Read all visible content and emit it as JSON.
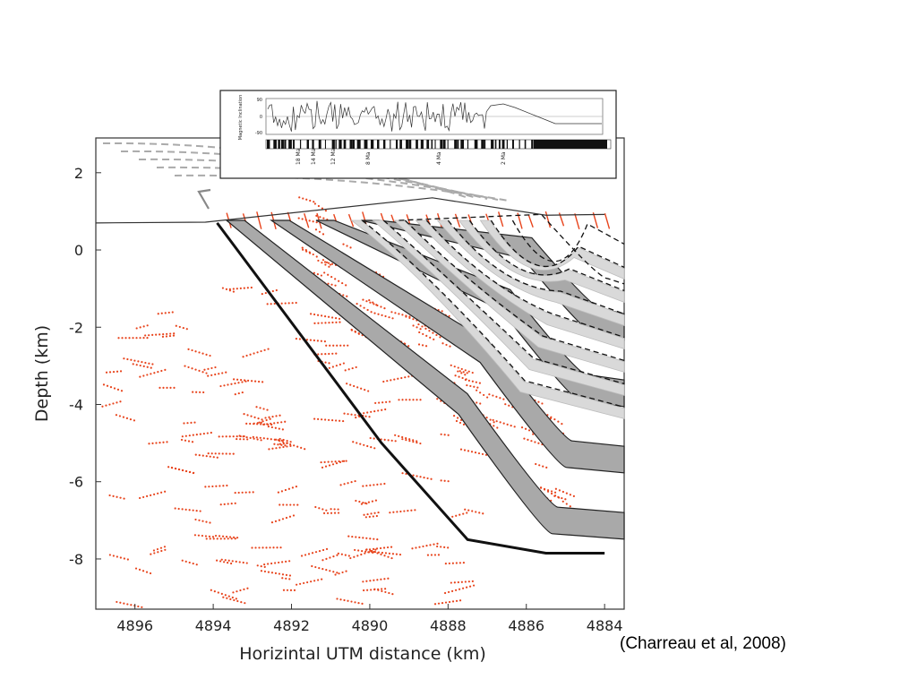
{
  "citation": "(Charreau et al, 2008)",
  "chart_data": [
    {
      "type": "scatter",
      "title": "",
      "xlabel": "Horizintal UTM  distance (km)",
      "ylabel": "Depth (km)",
      "xlim": [
        4897,
        4883.5
      ],
      "ylim": [
        -9.3,
        2.9
      ],
      "x_reversed": true,
      "x_ticks": [
        4896,
        4894,
        4892,
        4890,
        4888,
        4886,
        4884
      ],
      "y_ticks": [
        2,
        0,
        -2,
        -4,
        -6,
        -8
      ],
      "grid": false,
      "surface_profile": {
        "x": [
          4897,
          4894.2,
          4888.4,
          4885.5,
          4884
        ],
        "y": [
          0.7,
          0.72,
          1.35,
          0.9,
          0.92
        ]
      },
      "fault": {
        "x": [
          4893.9,
          4889.7,
          4887.5,
          4885.5,
          4884
        ],
        "y": [
          0.7,
          -5.0,
          -7.5,
          -7.85,
          -7.85
        ]
      },
      "dark_strata": {
        "label_count": 4,
        "fill": "#a9a9a9"
      },
      "light_strata": {
        "label_count": 7,
        "fill": "#d9d9d9"
      },
      "scatter_color": "#e8441c"
    },
    {
      "type": "line",
      "title": "",
      "ylabel": "Magnetic Inclination",
      "ylim": [
        -90,
        90
      ],
      "y_ticks": [
        "90",
        "0",
        "-90"
      ],
      "age_labels": [
        "18 Ma",
        "14 Ma",
        "12 Ma",
        "8 Ma",
        "4 Ma",
        "2 Ma"
      ],
      "polarity_column": "normal/reverse bars"
    }
  ]
}
